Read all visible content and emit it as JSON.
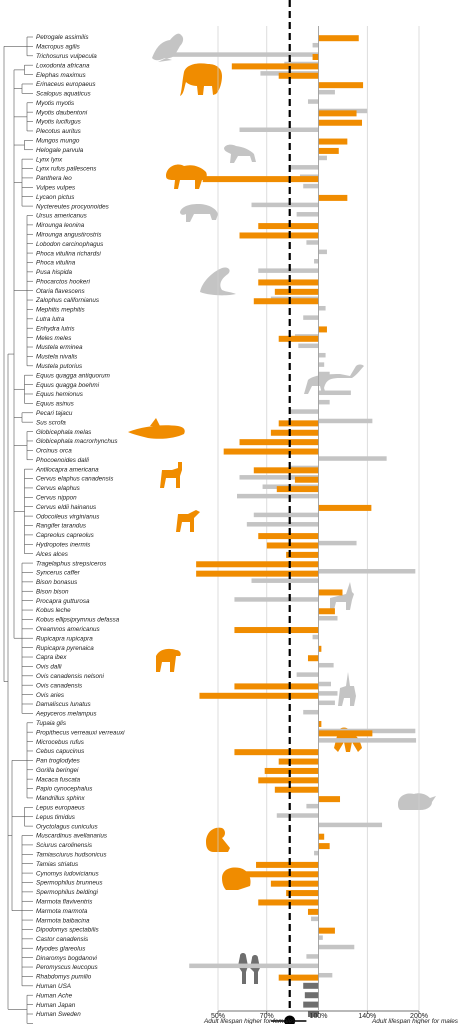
{
  "chart_data": {
    "type": "bar",
    "orientation": "horizontal",
    "x_scale": "log",
    "xlim": [
      0.5,
      2.0
    ],
    "xticks": [
      {
        "value": 0.5,
        "label": "50%"
      },
      {
        "value": 0.7,
        "label": "70%"
      },
      {
        "value": 1.0,
        "label": "100%"
      },
      {
        "value": 1.4,
        "label": "140%"
      },
      {
        "value": 2.0,
        "label": "200%"
      }
    ],
    "xlabel_left": "Adult lifespan higher for females",
    "xlabel_right": "Adult lifespan higher for males",
    "mean_ratio": 0.82,
    "ci": [
      0.72,
      0.92
    ],
    "colors": {
      "wild": "#f08c00",
      "captive": "#c4c4c4",
      "human": "#6e6e6e",
      "mean": "#000000"
    },
    "species": [
      {
        "name": "Petrogale assimilis",
        "wild": 1.32,
        "captive": null
      },
      {
        "name": "Macropus agilis",
        "wild": null,
        "captive": 0.96
      },
      {
        "name": "Trichosurus vulpecula",
        "wild": 0.96,
        "captive": 0.34
      },
      {
        "name": "Loxodonta africana",
        "wild": 0.55,
        "captive": 0.79
      },
      {
        "name": "Elephas maximus",
        "wild": 0.76,
        "captive": 0.67
      },
      {
        "name": "Erinaceus europaeus",
        "wild": 1.36,
        "captive": null
      },
      {
        "name": "Scalopus aquaticus",
        "wild": null,
        "captive": 1.12
      },
      {
        "name": "Myotis myotis",
        "wild": null,
        "captive": 0.93
      },
      {
        "name": "Myotis daubentoni",
        "wild": 1.3,
        "captive": 1.4
      },
      {
        "name": "Myotis lucifugus",
        "wild": 1.35,
        "captive": null
      },
      {
        "name": "Plecotus auritus",
        "wild": null,
        "captive": 0.58
      },
      {
        "name": "Mungos mungo",
        "wild": 1.22,
        "captive": null
      },
      {
        "name": "Helogale parvula",
        "wild": 1.15,
        "captive": null
      },
      {
        "name": "Lynx lynx",
        "wild": null,
        "captive": 1.06
      },
      {
        "name": "Lynx rufus pallescens",
        "wild": null,
        "captive": 0.82
      },
      {
        "name": "Panthera leo",
        "wild": 0.45,
        "captive": 0.88
      },
      {
        "name": "Vulpes vulpes",
        "wild": null,
        "captive": 0.9
      },
      {
        "name": "Lycaon pictus",
        "wild": 1.22,
        "captive": null
      },
      {
        "name": "Nyctereutes procyonoides",
        "wild": null,
        "captive": 0.63
      },
      {
        "name": "Ursus americanus",
        "wild": null,
        "captive": 0.86
      },
      {
        "name": "Mirounga leonina",
        "wild": 0.66,
        "captive": null
      },
      {
        "name": "Mirounga angustirostris",
        "wild": 0.58,
        "captive": null
      },
      {
        "name": "Lobodon carcinophagus",
        "wild": null,
        "captive": 0.92
      },
      {
        "name": "Phoca vitulina richardsi",
        "wild": null,
        "captive": 1.06
      },
      {
        "name": "Phoca vitulina",
        "wild": null,
        "captive": 0.97
      },
      {
        "name": "Pusa hispida",
        "wild": null,
        "captive": 0.66
      },
      {
        "name": "Phocarctos hookeri",
        "wild": 0.66,
        "captive": null
      },
      {
        "name": "Otaria flavescens",
        "wild": 0.74,
        "captive": null
      },
      {
        "name": "Zalophus californianus",
        "wild": 0.64,
        "captive": 0.72
      },
      {
        "name": "Mephitis mephitis",
        "wild": null,
        "captive": 1.05
      },
      {
        "name": "Lutra lutra",
        "wild": null,
        "captive": 0.9
      },
      {
        "name": "Enhydra lutris",
        "wild": 1.06,
        "captive": null
      },
      {
        "name": "Meles meles",
        "wild": 0.76,
        "captive": 0.85
      },
      {
        "name": "Mustela erminea",
        "wild": null,
        "captive": 0.87
      },
      {
        "name": "Mustela nivalis",
        "wild": null,
        "captive": 1.05
      },
      {
        "name": "Mustela putorius",
        "wild": null,
        "captive": 1.04
      },
      {
        "name": "Equus quagga antiquorum",
        "wild": null,
        "captive": 1.08
      },
      {
        "name": "Equus quagga boehmi",
        "wild": null,
        "captive": 0.97
      },
      {
        "name": "Equus hemionus",
        "wild": null,
        "captive": 1.25
      },
      {
        "name": "Equus asinus",
        "wild": null,
        "captive": 1.08
      },
      {
        "name": "Pecari tajacu",
        "wild": null,
        "captive": 0.82
      },
      {
        "name": "Sus scrofa",
        "wild": 0.76,
        "captive": 1.45
      },
      {
        "name": "Globicephala melas",
        "wild": 0.72,
        "captive": null
      },
      {
        "name": "Globicephala macrorhynchus",
        "wild": 0.58,
        "captive": null
      },
      {
        "name": "Orcinus orca",
        "wild": 0.52,
        "captive": null
      },
      {
        "name": "Phocoenoides dalli",
        "wild": null,
        "captive": 1.6
      },
      {
        "name": "Antilocapra americana",
        "wild": 0.64,
        "captive": 0.82
      },
      {
        "name": "Cervus elaphus canadensis",
        "wild": 0.85,
        "captive": 0.58
      },
      {
        "name": "Cervus elaphus",
        "wild": 0.75,
        "captive": 0.68
      },
      {
        "name": "Cervus nippon",
        "wild": null,
        "captive": 0.57
      },
      {
        "name": "Cervus eldii hainanus",
        "wild": 1.44,
        "captive": null
      },
      {
        "name": "Odocoileus virginianus",
        "wild": null,
        "captive": 0.64
      },
      {
        "name": "Rangifer tarandus",
        "wild": null,
        "captive": 0.61
      },
      {
        "name": "Capreolus capreolus",
        "wild": 0.66,
        "captive": null
      },
      {
        "name": "Hydropotes inermis",
        "wild": 0.7,
        "captive": 1.3
      },
      {
        "name": "Alces alces",
        "wild": 0.8,
        "captive": null
      },
      {
        "name": "Tragelaphus strepsiceros",
        "wild": 0.43,
        "captive": null
      },
      {
        "name": "Syncerus caffer",
        "wild": 0.43,
        "captive": 1.95
      },
      {
        "name": "Bison bonasus",
        "wild": null,
        "captive": 0.63
      },
      {
        "name": "Bison bison",
        "wild": 1.18,
        "captive": null
      },
      {
        "name": "Procapra gutturosa",
        "wild": null,
        "captive": 0.56
      },
      {
        "name": "Kobus leche",
        "wild": 1.12,
        "captive": null
      },
      {
        "name": "Kobus ellipsiprymnus defassa",
        "wild": null,
        "captive": 1.14
      },
      {
        "name": "Oreamnos americanus",
        "wild": 0.56,
        "captive": null
      },
      {
        "name": "Rupicapra rupicapra",
        "wild": null,
        "captive": 0.96
      },
      {
        "name": "Rupicapra pyrenaica",
        "wild": 1.02,
        "captive": null
      },
      {
        "name": "Capra ibex",
        "wild": 0.93,
        "captive": null
      },
      {
        "name": "Ovis dalli",
        "wild": null,
        "captive": 1.11
      },
      {
        "name": "Ovis canadensis nelsoni",
        "wild": null,
        "captive": 0.86
      },
      {
        "name": "Ovis canadensis",
        "wild": 0.56,
        "captive": 1.09
      },
      {
        "name": "Ovis aries",
        "wild": 0.44,
        "captive": 1.14
      },
      {
        "name": "Damaliscus lunatus",
        "wild": null,
        "captive": 1.12
      },
      {
        "name": "Aepyceros melampus",
        "wild": null,
        "captive": 0.9
      },
      {
        "name": "Tupaia glis",
        "wild": 1.02,
        "captive": null
      },
      {
        "name": "Propithecus verreauxi verreauxi",
        "wild": 1.45,
        "captive": 1.95
      },
      {
        "name": "Microcebus rufus",
        "wild": null,
        "captive": 1.96
      },
      {
        "name": "Cebus capucinus",
        "wild": 0.56,
        "captive": null
      },
      {
        "name": "Pan troglodytes",
        "wild": 0.76,
        "captive": null
      },
      {
        "name": "Gorilla beringei",
        "wild": 0.69,
        "captive": null
      },
      {
        "name": "Macaca fuscata",
        "wild": 0.66,
        "captive": null
      },
      {
        "name": "Papio cynocephalus",
        "wild": 0.74,
        "captive": null
      },
      {
        "name": "Mandrillus sphinx",
        "wild": 1.16,
        "captive": null
      },
      {
        "name": "Lepus europaeus",
        "wild": null,
        "captive": 0.92
      },
      {
        "name": "Lepus timidus",
        "wild": null,
        "captive": 0.75
      },
      {
        "name": "Oryctolagus cuniculus",
        "wild": null,
        "captive": 1.55
      },
      {
        "name": "Muscardinus avellanarius",
        "wild": 1.04,
        "captive": null
      },
      {
        "name": "Sciurus carolinensis",
        "wild": 1.08,
        "captive": null
      },
      {
        "name": "Tamiasciurus hudsonicus",
        "wild": null,
        "captive": 0.97
      },
      {
        "name": "Tamias striatus",
        "wild": 0.65,
        "captive": null
      },
      {
        "name": "Cynomys ludovicianus",
        "wild": 0.58,
        "captive": null
      },
      {
        "name": "Spermophilus brunneus",
        "wild": 0.72,
        "captive": null
      },
      {
        "name": "Spermophilus beldingi",
        "wild": 0.8,
        "captive": null
      },
      {
        "name": "Marmota flaviventris",
        "wild": 0.66,
        "captive": null
      },
      {
        "name": "Marmota marmota",
        "wild": 0.93,
        "captive": null
      },
      {
        "name": "Marmota baibacina",
        "wild": null,
        "captive": 0.95
      },
      {
        "name": "Dipodomys spectabilis",
        "wild": 1.12,
        "captive": null
      },
      {
        "name": "Castor canadensis",
        "wild": null,
        "captive": 1.03
      },
      {
        "name": "Myodes glareolus",
        "wild": null,
        "captive": 1.28
      },
      {
        "name": "Dinaromys bogdanovi",
        "wild": null,
        "captive": 0.92
      },
      {
        "name": "Peromyscus leucopus",
        "wild": null,
        "captive": 0.41
      },
      {
        "name": "Rhabdomys pumilio",
        "wild": 0.76,
        "captive": 1.1
      },
      {
        "name": "Human USA",
        "human": 0.9
      },
      {
        "name": "Human Ache",
        "human": 0.91
      },
      {
        "name": "Human Japan",
        "human": 0.9
      },
      {
        "name": "Human Sweden",
        "human": 0.93
      }
    ]
  }
}
